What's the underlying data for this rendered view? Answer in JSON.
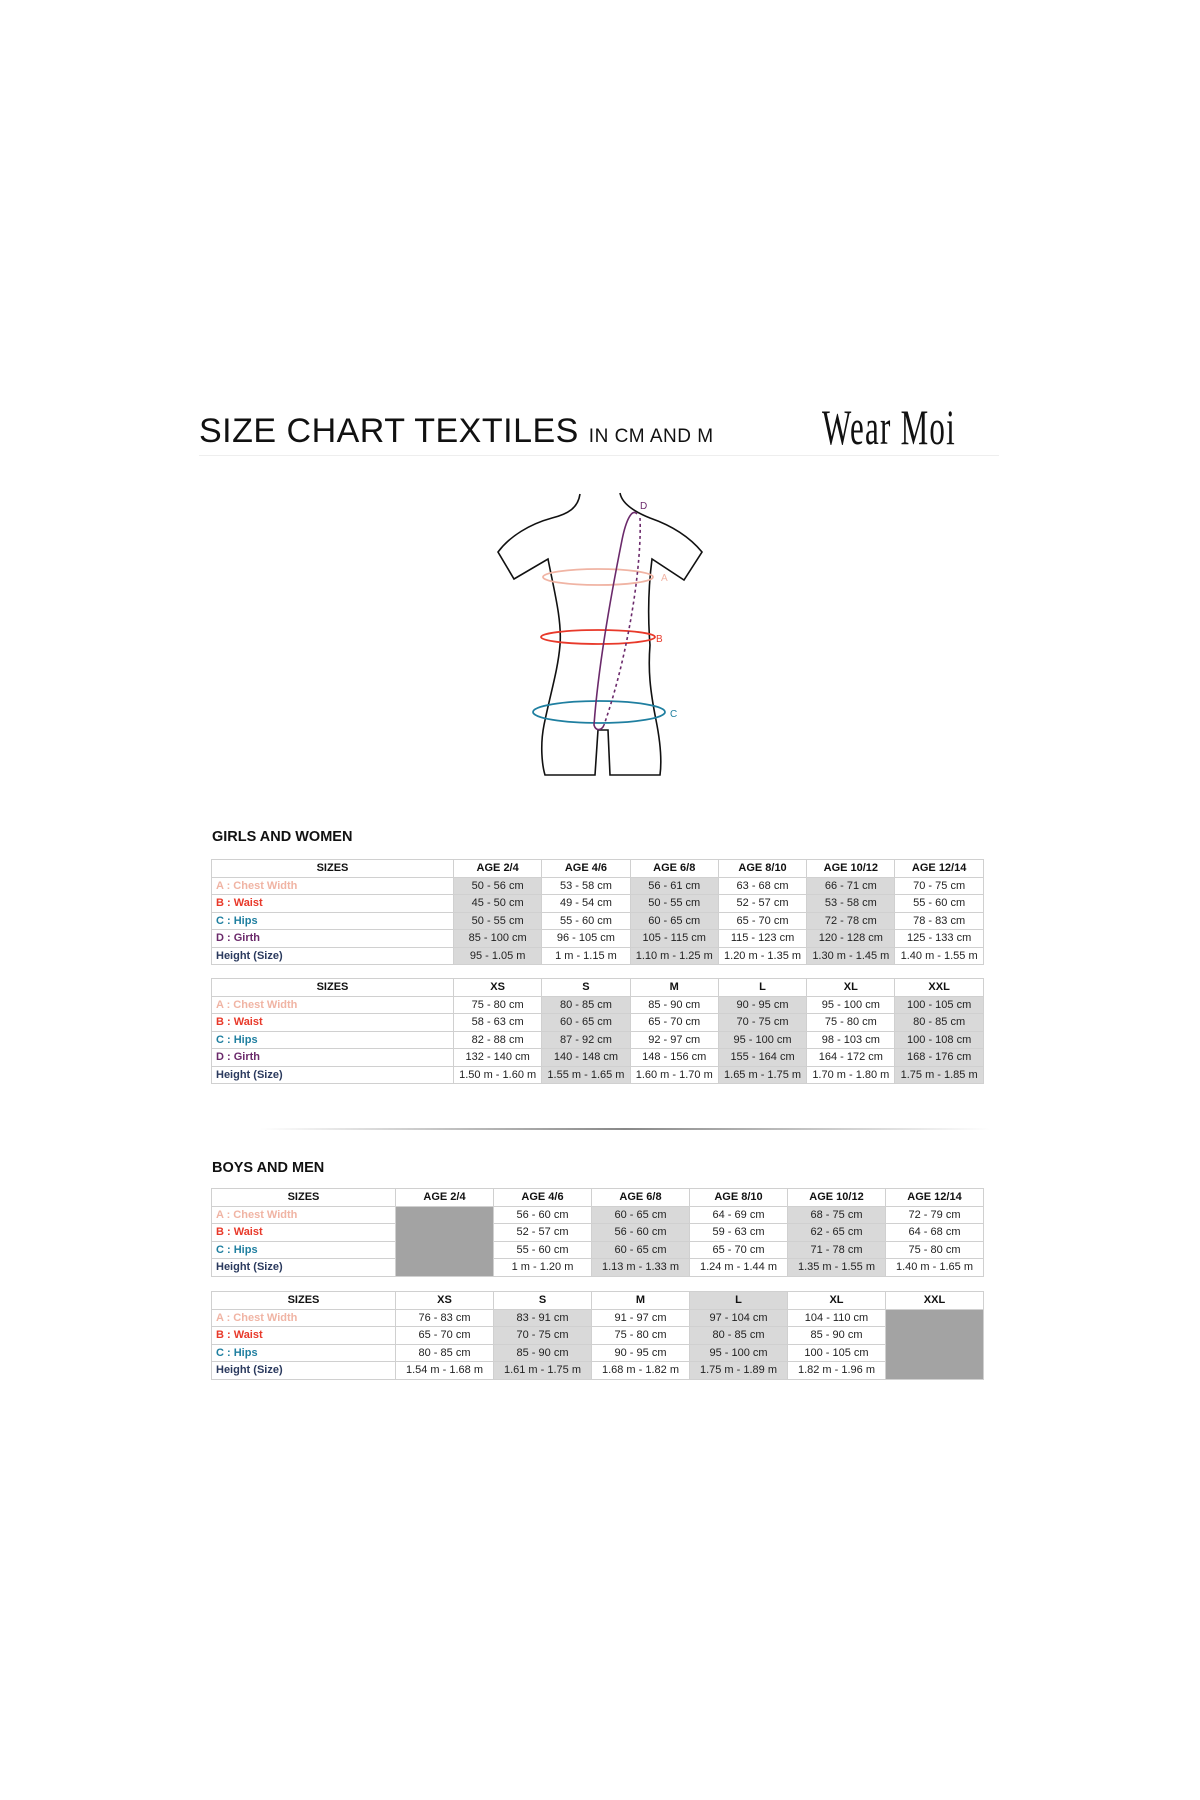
{
  "header": {
    "title": "SIZE CHART TEXTILES",
    "subtitle": "IN CM AND M",
    "logo": "Wear Moi"
  },
  "figure": {
    "labels": {
      "a": "A",
      "b": "B",
      "c": "C",
      "d": "D"
    }
  },
  "colors": {
    "a": "#f0b4a4",
    "b": "#e8392a",
    "c": "#1f7fa0",
    "d": "#6b2a6b",
    "height": "#2b3a5e",
    "shade": "#d9d9d9",
    "unavailable": "#a3a3a3"
  },
  "sections": [
    {
      "title": "GIRLS AND WOMEN",
      "tables": [
        {
          "headers": [
            "SIZES",
            "AGE 2/4",
            "AGE 4/6",
            "AGE 6/8",
            "AGE 8/10",
            "AGE 10/12",
            "AGE 12/14"
          ],
          "shaded_columns": [
            0,
            2,
            4
          ],
          "rows": [
            {
              "label": "A : Chest Width",
              "color": "a",
              "values": [
                "50 - 56 cm",
                "53 - 58 cm",
                "56 - 61 cm",
                "63 - 68 cm",
                "66 - 71 cm",
                "70 - 75 cm"
              ]
            },
            {
              "label": "B : Waist",
              "color": "b",
              "values": [
                "45 - 50 cm",
                "49 - 54 cm",
                "50 - 55 cm",
                "52 - 57 cm",
                "53 - 58 cm",
                "55 - 60 cm"
              ]
            },
            {
              "label": "C : Hips",
              "color": "c",
              "values": [
                "50 - 55 cm",
                "55 - 60 cm",
                "60 - 65 cm",
                "65 - 70 cm",
                "72 - 78 cm",
                "78 - 83 cm"
              ]
            },
            {
              "label": "D : Girth",
              "color": "d",
              "values": [
                "85 - 100 cm",
                "96 - 105 cm",
                "105 - 115  cm",
                "115 - 123 cm",
                "120 - 128 cm",
                "125 - 133 cm"
              ]
            },
            {
              "label": "Height (Size)",
              "color": "height",
              "values": [
                "95 - 1.05 m",
                "1 m - 1.15 m",
                "1.10 m - 1.25 m",
                "1.20 m - 1.35 m",
                "1.30 m - 1.45 m",
                "1.40 m - 1.55 m"
              ]
            }
          ]
        },
        {
          "headers": [
            "SIZES",
            "XS",
            "S",
            "M",
            "L",
            "XL",
            "XXL"
          ],
          "shaded_columns": [
            1,
            3,
            5
          ],
          "rows": [
            {
              "label": "A : Chest Width",
              "color": "a",
              "values": [
                "75 - 80 cm",
                "80 - 85 cm",
                "85 - 90 cm",
                "90 - 95 cm",
                "95 - 100 cm",
                "100 - 105 cm"
              ]
            },
            {
              "label": "B : Waist",
              "color": "b",
              "values": [
                "58 - 63 cm",
                "60 - 65 cm",
                "65 - 70 cm",
                "70 - 75 cm",
                "75 - 80 cm",
                "80 - 85 cm"
              ]
            },
            {
              "label": "C : Hips",
              "color": "c",
              "values": [
                "82 - 88 cm",
                "87 - 92 cm",
                "92 - 97 cm",
                "95 - 100 cm",
                "98 - 103 cm",
                "100 - 108 cm"
              ]
            },
            {
              "label": "D : Girth",
              "color": "d",
              "values": [
                "132 - 140 cm",
                "140 - 148 cm",
                "148 - 156 cm",
                "155 - 164 cm",
                "164 - 172 cm",
                "168 - 176 cm"
              ]
            },
            {
              "label": "Height (Size)",
              "color": "height",
              "values": [
                "1.50 m - 1.60 m",
                "1.55 m - 1.65 m",
                "1.60 m - 1.70 m",
                "1.65 m - 1.75 m",
                "1.70 m - 1.80 m",
                "1.75 m - 1.85 m"
              ]
            }
          ]
        }
      ]
    },
    {
      "title": "BOYS AND MEN",
      "tables": [
        {
          "headers": [
            "SIZES",
            "AGE 2/4",
            "AGE 4/6",
            "AGE 6/8",
            "AGE 8/10",
            "AGE 10/12",
            "AGE 12/14"
          ],
          "shaded_columns": [
            2,
            4
          ],
          "unavailable_column": 0,
          "rows": [
            {
              "label": "A : Chest Width",
              "color": "a",
              "values": [
                "",
                "56 - 60 cm",
                "60 - 65 cm",
                "64 - 69 cm",
                "68 - 75 cm",
                "72 - 79 cm"
              ]
            },
            {
              "label": "B : Waist",
              "color": "b",
              "values": [
                "",
                "52  - 57 cm",
                "56 - 60 cm",
                "59 - 63 cm",
                "62 - 65 cm",
                "64 - 68 cm"
              ]
            },
            {
              "label": "C : Hips",
              "color": "c",
              "values": [
                "",
                "55 - 60 cm",
                "60 - 65 cm",
                "65 - 70 cm",
                "71 - 78 cm",
                "75 - 80 cm"
              ]
            },
            {
              "label": "Height (Size)",
              "color": "height",
              "values": [
                "",
                "1 m - 1.20 m",
                "1.13 m - 1.33 m",
                "1.24 m - 1.44 m",
                "1.35 m - 1.55 m",
                "1.40 m - 1.65 m"
              ]
            }
          ]
        },
        {
          "headers": [
            "SIZES",
            "XS",
            "S",
            "M",
            "L",
            "XL",
            "XXL"
          ],
          "shaded_columns": [
            1,
            3
          ],
          "shaded_header_columns": [
            3
          ],
          "unavailable_column": 5,
          "rows": [
            {
              "label": "A : Chest Width",
              "color": "a",
              "values": [
                "76 - 83 cm",
                "83 - 91 cm",
                "91 - 97 cm",
                "97 - 104 cm",
                "104 - 110 cm",
                ""
              ]
            },
            {
              "label": "B : Waist",
              "color": "b",
              "values": [
                "65 - 70 cm",
                "70 - 75 cm",
                "75 - 80 cm",
                "80 - 85 cm",
                "85 - 90 cm",
                ""
              ]
            },
            {
              "label": "C : Hips",
              "color": "c",
              "values": [
                "80 - 85 cm",
                "85 - 90 cm",
                "90 - 95 cm",
                "95 - 100 cm",
                "100 - 105 cm",
                ""
              ]
            },
            {
              "label": "Height (Size)",
              "color": "height",
              "values": [
                "1.54 m - 1.68 m",
                "1.61 m - 1.75 m",
                "1.68 m - 1.82 m",
                "1.75 m - 1.89 m",
                "1.82 m - 1.96 m",
                ""
              ]
            }
          ]
        }
      ]
    }
  ]
}
